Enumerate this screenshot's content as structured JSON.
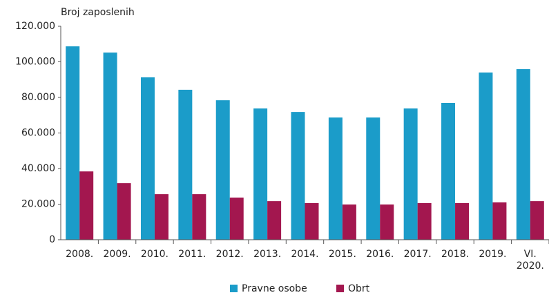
{
  "chart_data": {
    "type": "bar",
    "y_axis_label": "Broj zaposlenih",
    "categories": [
      "2008.",
      "2009.",
      "2010.",
      "2011.",
      "2012.",
      "2013.",
      "2014.",
      "2015.",
      "2016.",
      "2017.",
      "2018.",
      "2019.",
      "VI. 2020."
    ],
    "series": [
      {
        "name": "Pravne osobe",
        "color": "#1b9cc9",
        "values": [
          108700,
          105200,
          91300,
          84300,
          78400,
          73800,
          71800,
          68700,
          68700,
          73800,
          76900,
          94000,
          95900
        ]
      },
      {
        "name": "Obrt",
        "color": "#a3174f",
        "values": [
          38400,
          31800,
          25600,
          25600,
          23700,
          21700,
          20600,
          19800,
          19800,
          20600,
          20600,
          21000,
          21700
        ]
      }
    ],
    "ylim": [
      0,
      120000
    ],
    "yticks": [
      0,
      {
        "value": 20000,
        "label": "20.000"
      },
      {
        "value": 40000,
        "label": "40.000"
      },
      {
        "value": 60000,
        "label": "60.000"
      },
      {
        "value": 80000,
        "label": "80.000"
      },
      {
        "value": 100000,
        "label": "100.000"
      },
      {
        "value": 120000,
        "label": "120.000"
      }
    ],
    "legend": "bottom"
  }
}
